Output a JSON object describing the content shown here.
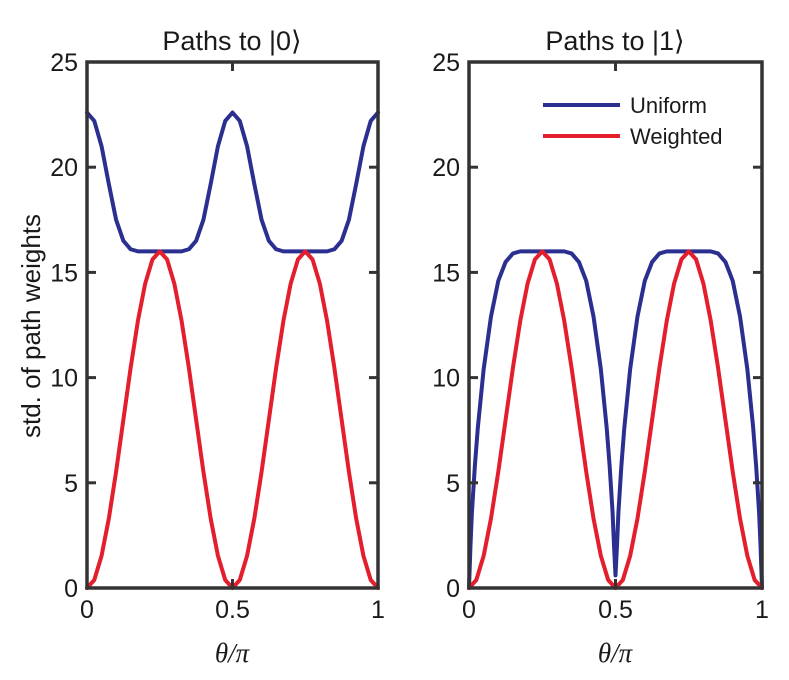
{
  "chart_data": [
    {
      "type": "line",
      "title": "Paths to |0⟩",
      "xlabel": "θ/π",
      "ylabel": "std. of path weights",
      "xlim": [
        0,
        1
      ],
      "ylim": [
        0,
        25
      ],
      "xticks": [
        "0",
        "0.5",
        "1"
      ],
      "xtick_values": [
        0,
        0.5,
        1
      ],
      "yticks": [
        "0",
        "5",
        "10",
        "15",
        "20",
        "25"
      ],
      "ytick_values": [
        0,
        5,
        10,
        15,
        20,
        25
      ],
      "grid": false,
      "series": [
        {
          "name": "Uniform",
          "color": "#2b2f8f",
          "x": [
            0,
            0.025,
            0.05,
            0.075,
            0.1,
            0.125,
            0.15,
            0.175,
            0.2,
            0.225,
            0.25,
            0.275,
            0.3,
            0.325,
            0.35,
            0.375,
            0.4,
            0.425,
            0.45,
            0.475,
            0.5,
            0.525,
            0.55,
            0.575,
            0.6,
            0.625,
            0.65,
            0.675,
            0.7,
            0.725,
            0.75,
            0.775,
            0.8,
            0.825,
            0.85,
            0.875,
            0.9,
            0.925,
            0.95,
            0.975,
            1
          ],
          "y": [
            22.6,
            22.2,
            21.0,
            19.2,
            17.5,
            16.5,
            16.1,
            16.0,
            16.0,
            16.0,
            16.0,
            16.0,
            16.0,
            16.0,
            16.1,
            16.5,
            17.5,
            19.2,
            21.0,
            22.2,
            22.6,
            22.2,
            21.0,
            19.2,
            17.5,
            16.5,
            16.1,
            16.0,
            16.0,
            16.0,
            16.0,
            16.0,
            16.0,
            16.0,
            16.1,
            16.5,
            17.5,
            19.2,
            21.0,
            22.2,
            22.6
          ]
        },
        {
          "name": "Weighted",
          "color": "#e31e2d",
          "x": [
            0,
            0.025,
            0.05,
            0.075,
            0.1,
            0.125,
            0.15,
            0.175,
            0.2,
            0.225,
            0.25,
            0.275,
            0.3,
            0.325,
            0.35,
            0.375,
            0.4,
            0.425,
            0.45,
            0.475,
            0.5,
            0.525,
            0.55,
            0.575,
            0.6,
            0.625,
            0.65,
            0.675,
            0.7,
            0.725,
            0.75,
            0.775,
            0.8,
            0.825,
            0.85,
            0.875,
            0.9,
            0.925,
            0.95,
            0.975,
            1
          ],
          "y": [
            0,
            0.38,
            1.53,
            3.3,
            5.53,
            8.0,
            10.47,
            12.7,
            14.47,
            15.62,
            16.0,
            15.62,
            14.47,
            12.7,
            10.47,
            8.0,
            5.53,
            3.3,
            1.53,
            0.38,
            0,
            0.38,
            1.53,
            3.3,
            5.53,
            8.0,
            10.47,
            12.7,
            14.47,
            15.62,
            16.0,
            15.62,
            14.47,
            12.7,
            10.47,
            8.0,
            5.53,
            3.3,
            1.53,
            0.38,
            0
          ]
        }
      ]
    },
    {
      "type": "line",
      "title": "Paths to |1⟩",
      "xlabel": "θ/π",
      "ylabel": "",
      "xlim": [
        0,
        1
      ],
      "ylim": [
        0,
        25
      ],
      "xticks": [
        "0",
        "0.5",
        "1"
      ],
      "xtick_values": [
        0,
        0.5,
        1
      ],
      "yticks": [
        "0",
        "5",
        "10",
        "15",
        "20",
        "25"
      ],
      "ytick_values": [
        0,
        5,
        10,
        15,
        20,
        25
      ],
      "grid": false,
      "legend": {
        "position": "top-right",
        "entries": [
          "Uniform",
          "Weighted"
        ]
      },
      "series": [
        {
          "name": "Uniform",
          "color": "#2b2f8f",
          "x": [
            0,
            0.005,
            0.01,
            0.02,
            0.03,
            0.05,
            0.075,
            0.1,
            0.125,
            0.15,
            0.175,
            0.2,
            0.25,
            0.3,
            0.325,
            0.35,
            0.375,
            0.4,
            0.425,
            0.45,
            0.47,
            0.48,
            0.49,
            0.495,
            0.5,
            0.505,
            0.51,
            0.52,
            0.53,
            0.55,
            0.575,
            0.6,
            0.625,
            0.65,
            0.675,
            0.7,
            0.75,
            0.8,
            0.825,
            0.85,
            0.875,
            0.9,
            0.925,
            0.95,
            0.97,
            0.98,
            0.99,
            0.995,
            1
          ],
          "y": [
            0,
            2.0,
            3.6,
            5.8,
            7.6,
            10.4,
            12.9,
            14.6,
            15.5,
            15.9,
            16.0,
            16.0,
            16.0,
            16.0,
            16.0,
            15.9,
            15.5,
            14.6,
            12.9,
            10.4,
            7.6,
            5.8,
            3.6,
            2.0,
            0.6,
            2.0,
            3.6,
            5.8,
            7.6,
            10.4,
            12.9,
            14.6,
            15.5,
            15.9,
            16.0,
            16.0,
            16.0,
            16.0,
            16.0,
            15.9,
            15.5,
            14.6,
            12.9,
            10.4,
            7.6,
            5.8,
            3.6,
            2.0,
            0
          ]
        },
        {
          "name": "Weighted",
          "color": "#e31e2d",
          "x": [
            0,
            0.025,
            0.05,
            0.075,
            0.1,
            0.125,
            0.15,
            0.175,
            0.2,
            0.225,
            0.25,
            0.275,
            0.3,
            0.325,
            0.35,
            0.375,
            0.4,
            0.425,
            0.45,
            0.475,
            0.5,
            0.525,
            0.55,
            0.575,
            0.6,
            0.625,
            0.65,
            0.675,
            0.7,
            0.725,
            0.75,
            0.775,
            0.8,
            0.825,
            0.85,
            0.875,
            0.9,
            0.925,
            0.95,
            0.975,
            1
          ],
          "y": [
            0,
            0.38,
            1.53,
            3.3,
            5.53,
            8.0,
            10.47,
            12.7,
            14.47,
            15.62,
            16.0,
            15.62,
            14.47,
            12.7,
            10.47,
            8.0,
            5.53,
            3.3,
            1.53,
            0.38,
            0,
            0.38,
            1.53,
            3.3,
            5.53,
            8.0,
            10.47,
            12.7,
            14.47,
            15.62,
            16.0,
            15.62,
            14.47,
            12.7,
            10.47,
            8.0,
            5.53,
            3.3,
            1.53,
            0.38,
            0
          ]
        }
      ]
    }
  ]
}
